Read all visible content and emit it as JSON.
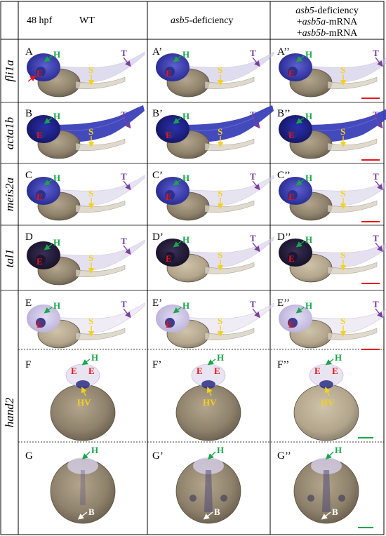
{
  "header": {
    "stage": "48 hpf",
    "col1": "WT",
    "col2_gene": "asb5",
    "col2_rest": "-deficiency",
    "col3_line1_gene": "asb5",
    "col3_line1_rest": "-deficiency",
    "col3_line2_pre": "+",
    "col3_line2_gene": "asb5a",
    "col3_line2_rest": "-mRNA",
    "col3_line3_pre": "+",
    "col3_line3_gene": "asb5b",
    "col3_line3_rest": "-mRNA"
  },
  "rows": [
    "fli1a",
    "acta1b",
    "meis2a",
    "tal1",
    "hand2"
  ],
  "panel_labels": [
    [
      "A",
      "A’",
      "A’’"
    ],
    [
      "B",
      "B’",
      "B’’"
    ],
    [
      "C",
      "C’",
      "C’’"
    ],
    [
      "D",
      "D’",
      "D’’"
    ],
    [
      "E",
      "E’",
      "E’’"
    ],
    [
      "F",
      "F’",
      "F’’"
    ],
    [
      "G",
      "G’",
      "G’’"
    ]
  ],
  "markers": {
    "heart": "H",
    "eye": "E",
    "somite": "S",
    "tail": "T",
    "heart_ventricle": "HV",
    "bulb": "B"
  },
  "colors": {
    "green": "#19a64a",
    "yellow": "#f2d21b",
    "purple": "#7a3f9e",
    "red_label": "#e8141a",
    "scale_red": "#e8141a",
    "scale_green": "#19a64a",
    "stain_dark": "#1c1f8c",
    "stain_light": "#c9c1e4",
    "yolk": "#9b8c74"
  }
}
